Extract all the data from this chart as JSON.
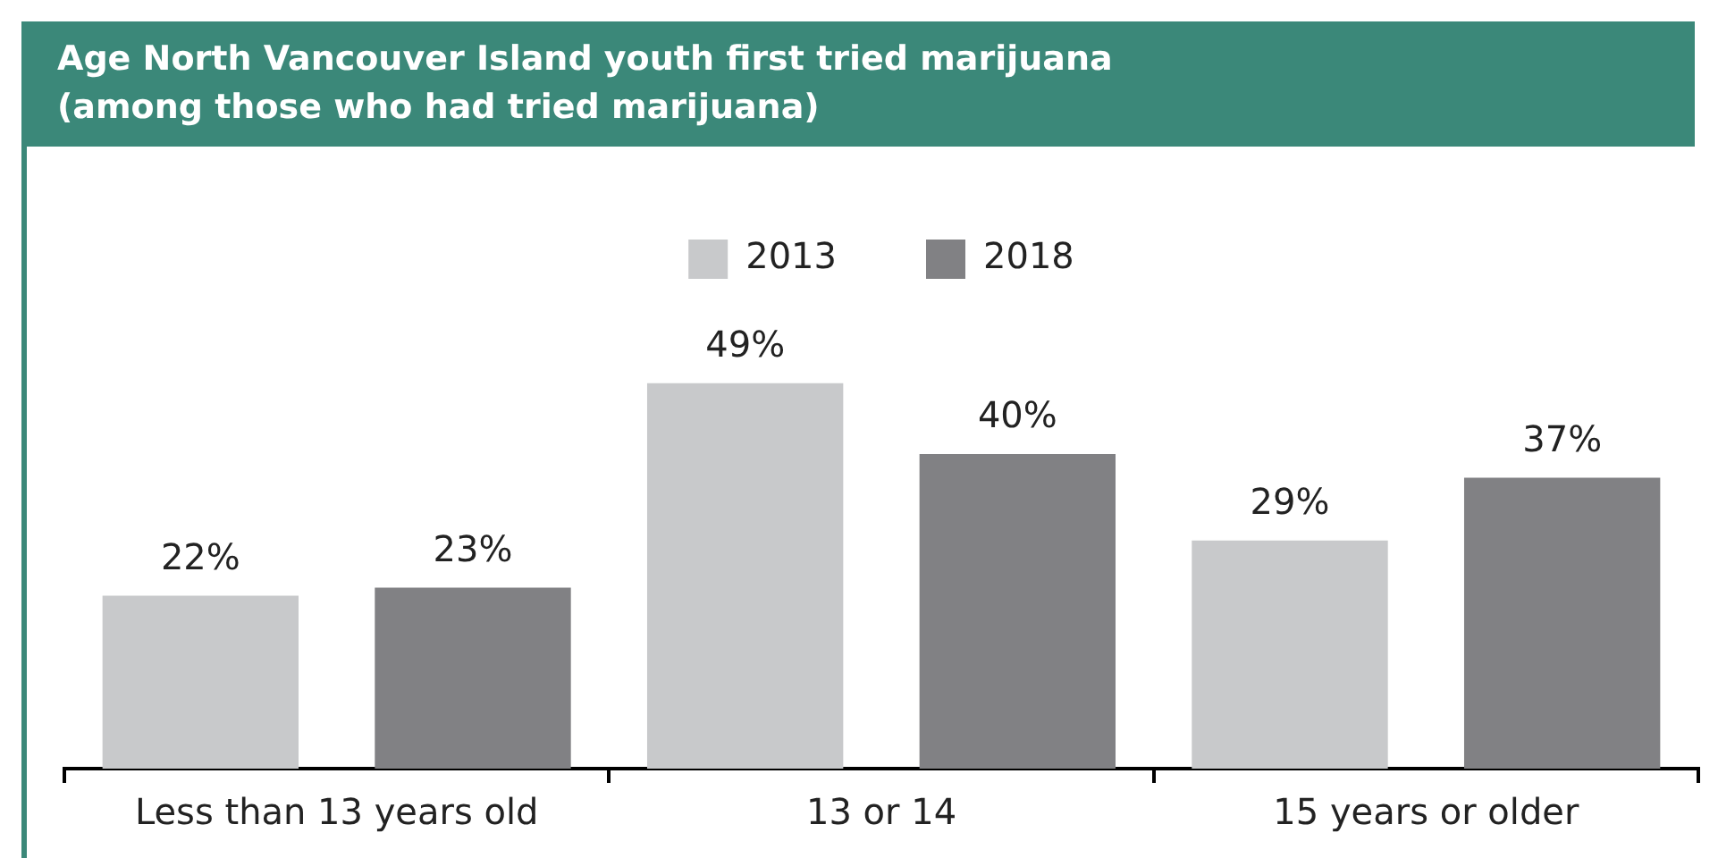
{
  "chart_data": {
    "type": "bar",
    "title": "Age North Vancouver Island youth first tried marijuana",
    "subtitle": "(among those who had tried marijuana)",
    "categories": [
      "Less than 13 years old",
      "13 or 14",
      "15 years or older"
    ],
    "series": [
      {
        "name": "2013",
        "color": "#c8c9cb",
        "values": [
          22,
          49,
          29
        ],
        "value_labels": [
          "22%",
          "49%",
          "29%"
        ]
      },
      {
        "name": "2018",
        "color": "#818184",
        "values": [
          23,
          40,
          37
        ],
        "value_labels": [
          "23%",
          "40%",
          "37%"
        ]
      }
    ],
    "legend": "top",
    "grid": false
  }
}
